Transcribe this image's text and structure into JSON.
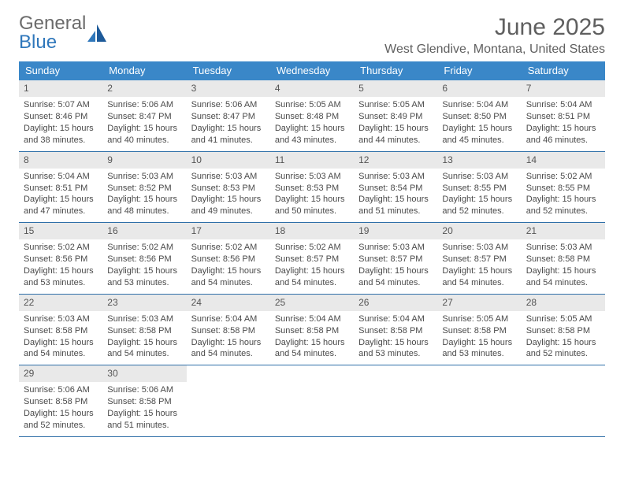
{
  "brand": {
    "word1": "General",
    "word2": "Blue"
  },
  "title": "June 2025",
  "location": "West Glendive, Montana, United States",
  "colors": {
    "header_bg": "#3a87c8",
    "header_text": "#ffffff",
    "daynum_bg": "#e9e9e9",
    "rule": "#2f6fa8",
    "body_text": "#4a4a4a",
    "title_text": "#5f5f5f",
    "logo_gray": "#6b6b6b",
    "logo_blue": "#2f77bb"
  },
  "day_names": [
    "Sunday",
    "Monday",
    "Tuesday",
    "Wednesday",
    "Thursday",
    "Friday",
    "Saturday"
  ],
  "weeks": [
    [
      {
        "n": "1",
        "sunrise": "5:07 AM",
        "sunset": "8:46 PM",
        "daylight": "15 hours and 38 minutes."
      },
      {
        "n": "2",
        "sunrise": "5:06 AM",
        "sunset": "8:47 PM",
        "daylight": "15 hours and 40 minutes."
      },
      {
        "n": "3",
        "sunrise": "5:06 AM",
        "sunset": "8:47 PM",
        "daylight": "15 hours and 41 minutes."
      },
      {
        "n": "4",
        "sunrise": "5:05 AM",
        "sunset": "8:48 PM",
        "daylight": "15 hours and 43 minutes."
      },
      {
        "n": "5",
        "sunrise": "5:05 AM",
        "sunset": "8:49 PM",
        "daylight": "15 hours and 44 minutes."
      },
      {
        "n": "6",
        "sunrise": "5:04 AM",
        "sunset": "8:50 PM",
        "daylight": "15 hours and 45 minutes."
      },
      {
        "n": "7",
        "sunrise": "5:04 AM",
        "sunset": "8:51 PM",
        "daylight": "15 hours and 46 minutes."
      }
    ],
    [
      {
        "n": "8",
        "sunrise": "5:04 AM",
        "sunset": "8:51 PM",
        "daylight": "15 hours and 47 minutes."
      },
      {
        "n": "9",
        "sunrise": "5:03 AM",
        "sunset": "8:52 PM",
        "daylight": "15 hours and 48 minutes."
      },
      {
        "n": "10",
        "sunrise": "5:03 AM",
        "sunset": "8:53 PM",
        "daylight": "15 hours and 49 minutes."
      },
      {
        "n": "11",
        "sunrise": "5:03 AM",
        "sunset": "8:53 PM",
        "daylight": "15 hours and 50 minutes."
      },
      {
        "n": "12",
        "sunrise": "5:03 AM",
        "sunset": "8:54 PM",
        "daylight": "15 hours and 51 minutes."
      },
      {
        "n": "13",
        "sunrise": "5:03 AM",
        "sunset": "8:55 PM",
        "daylight": "15 hours and 52 minutes."
      },
      {
        "n": "14",
        "sunrise": "5:02 AM",
        "sunset": "8:55 PM",
        "daylight": "15 hours and 52 minutes."
      }
    ],
    [
      {
        "n": "15",
        "sunrise": "5:02 AM",
        "sunset": "8:56 PM",
        "daylight": "15 hours and 53 minutes."
      },
      {
        "n": "16",
        "sunrise": "5:02 AM",
        "sunset": "8:56 PM",
        "daylight": "15 hours and 53 minutes."
      },
      {
        "n": "17",
        "sunrise": "5:02 AM",
        "sunset": "8:56 PM",
        "daylight": "15 hours and 54 minutes."
      },
      {
        "n": "18",
        "sunrise": "5:02 AM",
        "sunset": "8:57 PM",
        "daylight": "15 hours and 54 minutes."
      },
      {
        "n": "19",
        "sunrise": "5:03 AM",
        "sunset": "8:57 PM",
        "daylight": "15 hours and 54 minutes."
      },
      {
        "n": "20",
        "sunrise": "5:03 AM",
        "sunset": "8:57 PM",
        "daylight": "15 hours and 54 minutes."
      },
      {
        "n": "21",
        "sunrise": "5:03 AM",
        "sunset": "8:58 PM",
        "daylight": "15 hours and 54 minutes."
      }
    ],
    [
      {
        "n": "22",
        "sunrise": "5:03 AM",
        "sunset": "8:58 PM",
        "daylight": "15 hours and 54 minutes."
      },
      {
        "n": "23",
        "sunrise": "5:03 AM",
        "sunset": "8:58 PM",
        "daylight": "15 hours and 54 minutes."
      },
      {
        "n": "24",
        "sunrise": "5:04 AM",
        "sunset": "8:58 PM",
        "daylight": "15 hours and 54 minutes."
      },
      {
        "n": "25",
        "sunrise": "5:04 AM",
        "sunset": "8:58 PM",
        "daylight": "15 hours and 54 minutes."
      },
      {
        "n": "26",
        "sunrise": "5:04 AM",
        "sunset": "8:58 PM",
        "daylight": "15 hours and 53 minutes."
      },
      {
        "n": "27",
        "sunrise": "5:05 AM",
        "sunset": "8:58 PM",
        "daylight": "15 hours and 53 minutes."
      },
      {
        "n": "28",
        "sunrise": "5:05 AM",
        "sunset": "8:58 PM",
        "daylight": "15 hours and 52 minutes."
      }
    ],
    [
      {
        "n": "29",
        "sunrise": "5:06 AM",
        "sunset": "8:58 PM",
        "daylight": "15 hours and 52 minutes."
      },
      {
        "n": "30",
        "sunrise": "5:06 AM",
        "sunset": "8:58 PM",
        "daylight": "15 hours and 51 minutes."
      },
      null,
      null,
      null,
      null,
      null
    ]
  ],
  "labels": {
    "sunrise_prefix": "Sunrise: ",
    "sunset_prefix": "Sunset: ",
    "daylight_prefix": "Daylight: "
  }
}
